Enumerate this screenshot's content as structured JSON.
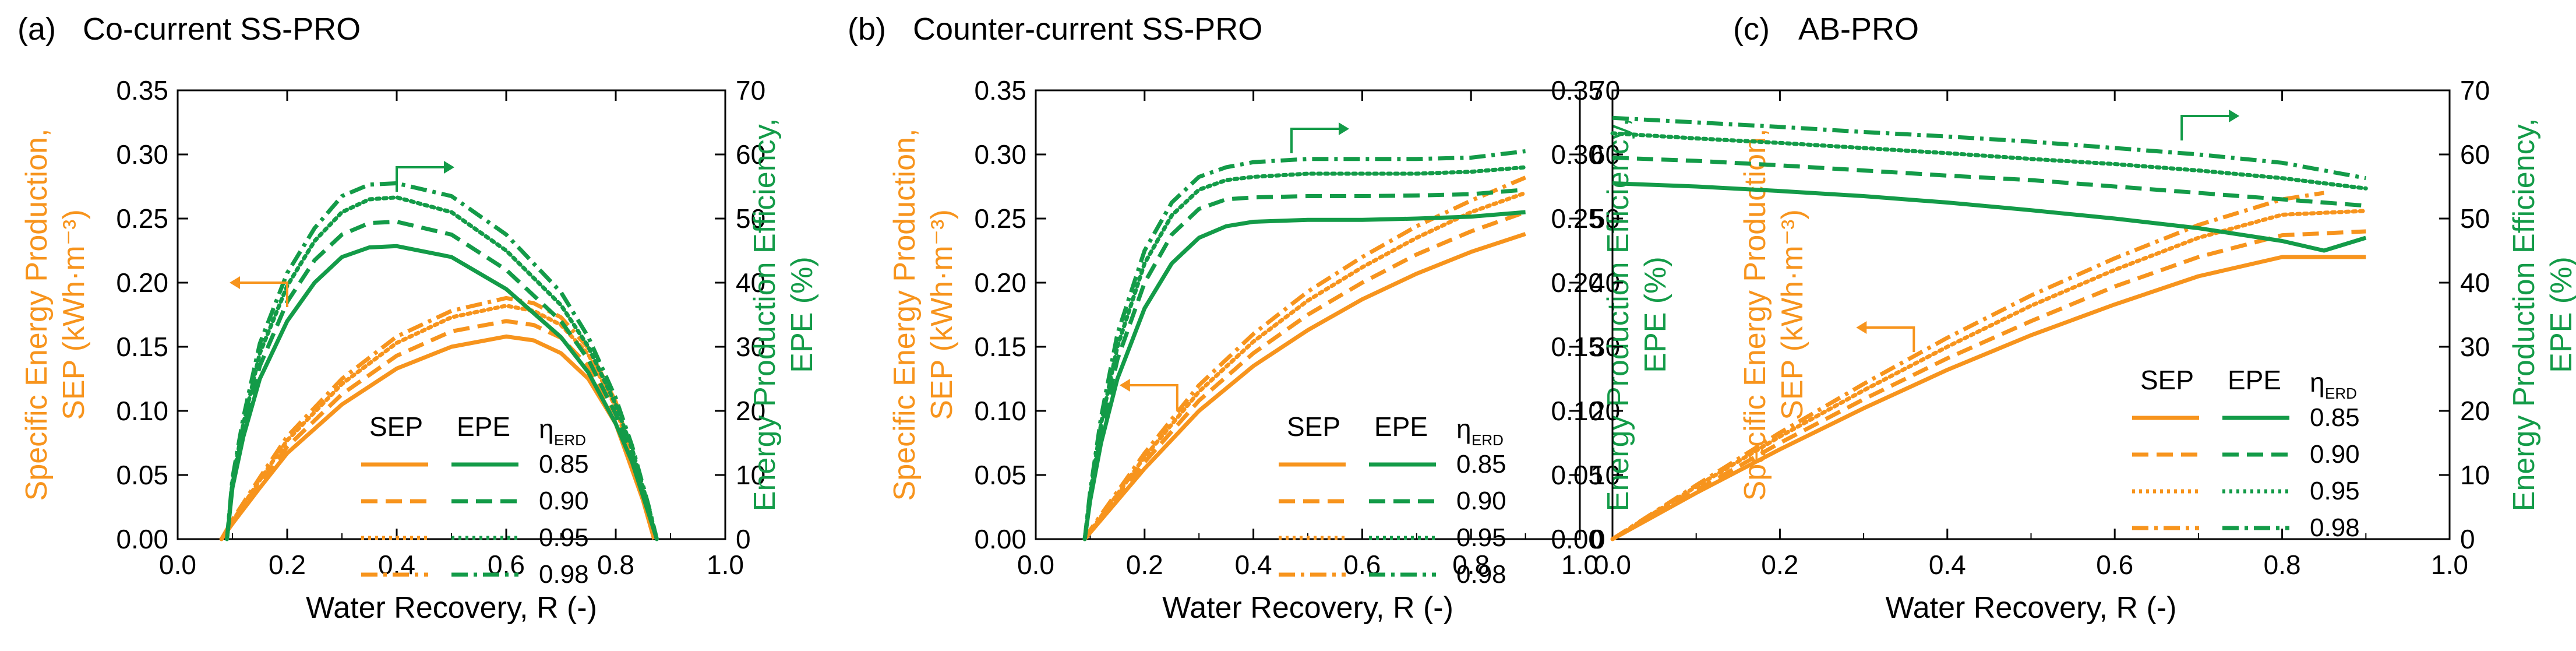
{
  "colors": {
    "sep": "#F7941D",
    "epe": "#139B48",
    "axis": "#000000"
  },
  "legend": {
    "sep_header": "SEP",
    "epe_header": "EPE",
    "eta_symbol": "η",
    "eta_subscript": "ERD",
    "eta_values": [
      "0.85",
      "0.90",
      "0.95",
      "0.98"
    ],
    "line_styles": [
      "solid",
      "dashed",
      "dotted",
      "dashdot"
    ]
  },
  "chart_data": [
    {
      "type": "line",
      "panel_label": "(a)",
      "title": "Co-current SS-PRO",
      "xlabel": "Water Recovery, R (-)",
      "ylabel_left": [
        "Specific Energy Production,",
        "SEP (kWh·m⁻³)"
      ],
      "ylabel_right": [
        "Energy Production Efficiency,",
        "EPE (%)"
      ],
      "xlim": [
        0.0,
        1.0
      ],
      "ylim_left": [
        0.0,
        0.35
      ],
      "ylim_right": [
        0,
        70
      ],
      "x_ticks": [
        "0.0",
        "0.2",
        "0.4",
        "0.6",
        "0.8",
        "1.0"
      ],
      "y_left_ticks": [
        "0.00",
        "0.05",
        "0.10",
        "0.15",
        "0.20",
        "0.25",
        "0.30",
        "0.35"
      ],
      "y_right_ticks": [
        "0",
        "10",
        "20",
        "30",
        "40",
        "50",
        "60",
        "70"
      ],
      "series": [
        {
          "name": "SEP 0.85",
          "axis": "left",
          "style": "solid",
          "x": [
            0.08,
            0.1,
            0.15,
            0.2,
            0.3,
            0.4,
            0.5,
            0.6,
            0.65,
            0.7,
            0.75,
            0.8,
            0.85,
            0.87
          ],
          "y": [
            0.0,
            0.012,
            0.04,
            0.067,
            0.105,
            0.133,
            0.15,
            0.158,
            0.155,
            0.145,
            0.125,
            0.09,
            0.03,
            0.0
          ]
        },
        {
          "name": "SEP 0.90",
          "axis": "left",
          "style": "dashed",
          "x": [
            0.08,
            0.1,
            0.15,
            0.2,
            0.3,
            0.4,
            0.5,
            0.6,
            0.65,
            0.7,
            0.75,
            0.8,
            0.85,
            0.87
          ],
          "y": [
            0.0,
            0.013,
            0.043,
            0.072,
            0.113,
            0.143,
            0.162,
            0.17,
            0.167,
            0.157,
            0.135,
            0.097,
            0.033,
            0.0
          ]
        },
        {
          "name": "SEP 0.95",
          "axis": "left",
          "style": "dotted",
          "x": [
            0.08,
            0.1,
            0.15,
            0.2,
            0.3,
            0.4,
            0.5,
            0.6,
            0.65,
            0.7,
            0.75,
            0.8,
            0.85,
            0.87
          ],
          "y": [
            0.0,
            0.014,
            0.046,
            0.077,
            0.121,
            0.153,
            0.173,
            0.182,
            0.178,
            0.167,
            0.144,
            0.103,
            0.035,
            0.0
          ]
        },
        {
          "name": "SEP 0.98",
          "axis": "left",
          "style": "dashdot",
          "x": [
            0.08,
            0.1,
            0.15,
            0.2,
            0.3,
            0.4,
            0.5,
            0.6,
            0.65,
            0.7,
            0.75,
            0.8,
            0.85,
            0.87
          ],
          "y": [
            0.0,
            0.015,
            0.048,
            0.08,
            0.125,
            0.158,
            0.178,
            0.188,
            0.184,
            0.173,
            0.149,
            0.107,
            0.037,
            0.0
          ]
        },
        {
          "name": "EPE 0.85",
          "axis": "right",
          "style": "solid",
          "x": [
            0.09,
            0.1,
            0.12,
            0.15,
            0.2,
            0.25,
            0.3,
            0.35,
            0.4,
            0.5,
            0.6,
            0.7,
            0.75,
            0.8,
            0.83,
            0.86,
            0.875
          ],
          "y": [
            0,
            8,
            16,
            25,
            34,
            40,
            44,
            45.5,
            45.7,
            44,
            39,
            31.5,
            26,
            18,
            12,
            4,
            0
          ]
        },
        {
          "name": "EPE 0.90",
          "axis": "right",
          "style": "dashed",
          "x": [
            0.09,
            0.1,
            0.12,
            0.15,
            0.2,
            0.25,
            0.3,
            0.35,
            0.4,
            0.5,
            0.6,
            0.7,
            0.75,
            0.8,
            0.83,
            0.86,
            0.875
          ],
          "y": [
            0,
            8.5,
            17,
            27,
            37,
            43.5,
            47.5,
            49.3,
            49.5,
            47.5,
            42,
            34,
            28,
            19.5,
            13,
            4.5,
            0
          ]
        },
        {
          "name": "EPE 0.95",
          "axis": "right",
          "style": "dotted",
          "x": [
            0.09,
            0.1,
            0.12,
            0.15,
            0.2,
            0.25,
            0.3,
            0.35,
            0.4,
            0.5,
            0.6,
            0.7,
            0.75,
            0.8,
            0.83,
            0.86,
            0.875
          ],
          "y": [
            0,
            9,
            18,
            29,
            39.5,
            46.5,
            51,
            53,
            53.3,
            51,
            45,
            36.5,
            30,
            21,
            14,
            5,
            0
          ]
        },
        {
          "name": "EPE 0.98",
          "axis": "right",
          "style": "dashdot",
          "x": [
            0.09,
            0.1,
            0.12,
            0.15,
            0.2,
            0.25,
            0.3,
            0.35,
            0.4,
            0.5,
            0.6,
            0.7,
            0.75,
            0.8,
            0.83,
            0.86,
            0.875
          ],
          "y": [
            0,
            9.5,
            19,
            30.5,
            41.5,
            48.5,
            53.5,
            55.3,
            55.5,
            53.5,
            47.5,
            38.5,
            31.5,
            22,
            14.5,
            5.2,
            0
          ]
        }
      ],
      "annotations": [
        {
          "kind": "arrow",
          "axis": "left",
          "direction": "left",
          "x": 0.2,
          "y": 0.2
        },
        {
          "kind": "arrow",
          "axis": "right",
          "direction": "right",
          "x": 0.4,
          "y": 58
        }
      ]
    },
    {
      "type": "line",
      "panel_label": "(b)",
      "title": "Counter-current SS-PRO",
      "xlabel": "Water Recovery, R (-)",
      "ylabel_left": [
        "Specific Energy Production,",
        "SEP (kWh·m⁻³)"
      ],
      "ylabel_right": [
        "Energy Production Efficiency,",
        "EPE (%)"
      ],
      "xlim": [
        0.0,
        1.0
      ],
      "ylim_left": [
        0.0,
        0.35
      ],
      "ylim_right": [
        0,
        70
      ],
      "x_ticks": [
        "0.0",
        "0.2",
        "0.4",
        "0.6",
        "0.8",
        "1.0"
      ],
      "y_left_ticks": [
        "0.00",
        "0.05",
        "0.10",
        "0.15",
        "0.20",
        "0.25",
        "0.30",
        "0.35"
      ],
      "y_right_ticks": [
        "0",
        "10",
        "20",
        "30",
        "40",
        "50",
        "60",
        "70"
      ],
      "series": [
        {
          "name": "SEP 0.85",
          "axis": "left",
          "style": "solid",
          "x": [
            0.09,
            0.1,
            0.15,
            0.2,
            0.3,
            0.4,
            0.5,
            0.6,
            0.7,
            0.8,
            0.9
          ],
          "y": [
            0.0,
            0.005,
            0.03,
            0.055,
            0.1,
            0.135,
            0.163,
            0.187,
            0.207,
            0.224,
            0.238
          ]
        },
        {
          "name": "SEP 0.90",
          "axis": "left",
          "style": "dashed",
          "x": [
            0.09,
            0.1,
            0.15,
            0.2,
            0.3,
            0.4,
            0.5,
            0.6,
            0.7,
            0.8,
            0.9
          ],
          "y": [
            0.0,
            0.006,
            0.033,
            0.06,
            0.108,
            0.145,
            0.175,
            0.2,
            0.222,
            0.24,
            0.255
          ]
        },
        {
          "name": "SEP 0.95",
          "axis": "left",
          "style": "dotted",
          "x": [
            0.09,
            0.1,
            0.15,
            0.2,
            0.3,
            0.4,
            0.5,
            0.6,
            0.7,
            0.8,
            0.9
          ],
          "y": [
            0.0,
            0.006,
            0.035,
            0.064,
            0.115,
            0.154,
            0.186,
            0.212,
            0.235,
            0.255,
            0.27
          ]
        },
        {
          "name": "SEP 0.98",
          "axis": "left",
          "style": "dashdot",
          "x": [
            0.09,
            0.1,
            0.15,
            0.2,
            0.3,
            0.4,
            0.5,
            0.6,
            0.7,
            0.8,
            0.9
          ],
          "y": [
            0.0,
            0.007,
            0.037,
            0.067,
            0.12,
            0.16,
            0.193,
            0.22,
            0.244,
            0.264,
            0.282
          ]
        },
        {
          "name": "EPE 0.85",
          "axis": "right",
          "style": "solid",
          "x": [
            0.09,
            0.1,
            0.12,
            0.15,
            0.2,
            0.25,
            0.3,
            0.35,
            0.4,
            0.5,
            0.6,
            0.7,
            0.8,
            0.9
          ],
          "y": [
            0,
            6,
            15,
            25,
            36,
            43,
            47,
            48.8,
            49.5,
            49.8,
            49.8,
            50,
            50.3,
            51
          ]
        },
        {
          "name": "EPE 0.90",
          "axis": "right",
          "style": "dashed",
          "x": [
            0.09,
            0.1,
            0.12,
            0.15,
            0.2,
            0.25,
            0.3,
            0.35,
            0.4,
            0.5,
            0.6,
            0.7,
            0.8,
            0.9
          ],
          "y": [
            0,
            6.5,
            16.5,
            28,
            40,
            47.5,
            51.5,
            53,
            53.3,
            53.5,
            53.5,
            53.6,
            53.8,
            54.5
          ]
        },
        {
          "name": "EPE 0.95",
          "axis": "right",
          "style": "dotted",
          "x": [
            0.09,
            0.1,
            0.12,
            0.15,
            0.2,
            0.25,
            0.3,
            0.35,
            0.4,
            0.5,
            0.6,
            0.7,
            0.8,
            0.9
          ],
          "y": [
            0,
            7,
            18,
            30,
            43,
            50.5,
            54.5,
            56,
            56.5,
            57,
            57,
            57,
            57.3,
            58
          ]
        },
        {
          "name": "EPE 0.98",
          "axis": "right",
          "style": "dashdot",
          "x": [
            0.09,
            0.1,
            0.12,
            0.15,
            0.2,
            0.25,
            0.3,
            0.35,
            0.4,
            0.5,
            0.6,
            0.7,
            0.8,
            0.9
          ],
          "y": [
            0,
            7.5,
            19,
            32,
            45,
            52.5,
            56.5,
            58,
            58.8,
            59.3,
            59.3,
            59.3,
            59.5,
            60.5
          ]
        }
      ],
      "annotations": [
        {
          "kind": "arrow",
          "axis": "left",
          "direction": "left",
          "x": 0.26,
          "y": 0.12
        },
        {
          "kind": "arrow",
          "axis": "right",
          "direction": "right",
          "x": 0.47,
          "y": 64
        }
      ]
    },
    {
      "type": "line",
      "panel_label": "(c)",
      "title": "AB-PRO",
      "xlabel": "Water Recovery, R (-)",
      "ylabel_left": [
        "Specific Energy Production,",
        "SEP (kWh·m⁻³)"
      ],
      "ylabel_right": [
        "Energy Production Efficiency,",
        "EPE (%)"
      ],
      "xlim": [
        0.0,
        1.0
      ],
      "ylim_left": [
        0.0,
        0.35
      ],
      "ylim_right": [
        0,
        70
      ],
      "x_ticks": [
        "0.0",
        "0.2",
        "0.4",
        "0.6",
        "0.8",
        "1.0"
      ],
      "y_left_ticks": [
        "0.00",
        "0.05",
        "0.10",
        "0.15",
        "0.20",
        "0.25",
        "0.30",
        "0.35"
      ],
      "y_right_ticks": [
        "0",
        "10",
        "20",
        "30",
        "40",
        "50",
        "60",
        "70"
      ],
      "series": [
        {
          "name": "SEP 0.85",
          "axis": "left",
          "style": "solid",
          "x": [
            0.0,
            0.1,
            0.2,
            0.3,
            0.4,
            0.5,
            0.6,
            0.7,
            0.8,
            0.9
          ],
          "y": [
            0.0,
            0.036,
            0.07,
            0.102,
            0.132,
            0.159,
            0.183,
            0.205,
            0.22,
            0.22
          ]
        },
        {
          "name": "SEP 0.90",
          "axis": "left",
          "style": "dashed",
          "x": [
            0.0,
            0.1,
            0.2,
            0.3,
            0.4,
            0.5,
            0.6,
            0.7,
            0.8,
            0.9
          ],
          "y": [
            0.0,
            0.038,
            0.075,
            0.109,
            0.141,
            0.17,
            0.197,
            0.22,
            0.237,
            0.24
          ]
        },
        {
          "name": "SEP 0.95",
          "axis": "left",
          "style": "dotted",
          "x": [
            0.0,
            0.1,
            0.2,
            0.3,
            0.4,
            0.5,
            0.6,
            0.7,
            0.8,
            0.9
          ],
          "y": [
            0.0,
            0.041,
            0.08,
            0.116,
            0.15,
            0.182,
            0.21,
            0.235,
            0.253,
            0.256
          ]
        },
        {
          "name": "SEP 0.98",
          "axis": "left",
          "style": "dashdot",
          "x": [
            0.0,
            0.1,
            0.2,
            0.3,
            0.4,
            0.5,
            0.6,
            0.7,
            0.8,
            0.85
          ],
          "y": [
            0.0,
            0.042,
            0.083,
            0.121,
            0.157,
            0.19,
            0.219,
            0.245,
            0.265,
            0.27
          ]
        },
        {
          "name": "EPE 0.85",
          "axis": "right",
          "style": "solid",
          "x": [
            0.0,
            0.1,
            0.2,
            0.3,
            0.4,
            0.5,
            0.6,
            0.7,
            0.8,
            0.85,
            0.9
          ],
          "y": [
            55.5,
            55,
            54.3,
            53.5,
            52.5,
            51.3,
            50,
            48.5,
            46.5,
            45,
            47
          ]
        },
        {
          "name": "EPE 0.90",
          "axis": "right",
          "style": "dashed",
          "x": [
            0.0,
            0.1,
            0.2,
            0.3,
            0.4,
            0.5,
            0.6,
            0.7,
            0.8,
            0.9
          ],
          "y": [
            59.5,
            59,
            58.3,
            57.5,
            56.7,
            56,
            55,
            54,
            53,
            52
          ]
        },
        {
          "name": "EPE 0.95",
          "axis": "right",
          "style": "dotted",
          "x": [
            0.0,
            0.1,
            0.2,
            0.3,
            0.4,
            0.5,
            0.6,
            0.7,
            0.8,
            0.9
          ],
          "y": [
            63.3,
            62.5,
            61.8,
            61,
            60.2,
            59.3,
            58.5,
            57.5,
            56.3,
            54.7
          ]
        },
        {
          "name": "EPE 0.98",
          "axis": "right",
          "style": "dashdot",
          "x": [
            0.0,
            0.1,
            0.2,
            0.3,
            0.4,
            0.5,
            0.6,
            0.7,
            0.8,
            0.9
          ],
          "y": [
            65.7,
            65,
            64.3,
            63.5,
            62.8,
            62,
            61,
            60,
            58.7,
            56.3
          ]
        }
      ],
      "annotations": [
        {
          "kind": "arrow",
          "axis": "left",
          "direction": "left",
          "x": 0.36,
          "y": 0.165
        },
        {
          "kind": "arrow",
          "axis": "right",
          "direction": "right",
          "x": 0.68,
          "y": 66
        }
      ]
    }
  ]
}
